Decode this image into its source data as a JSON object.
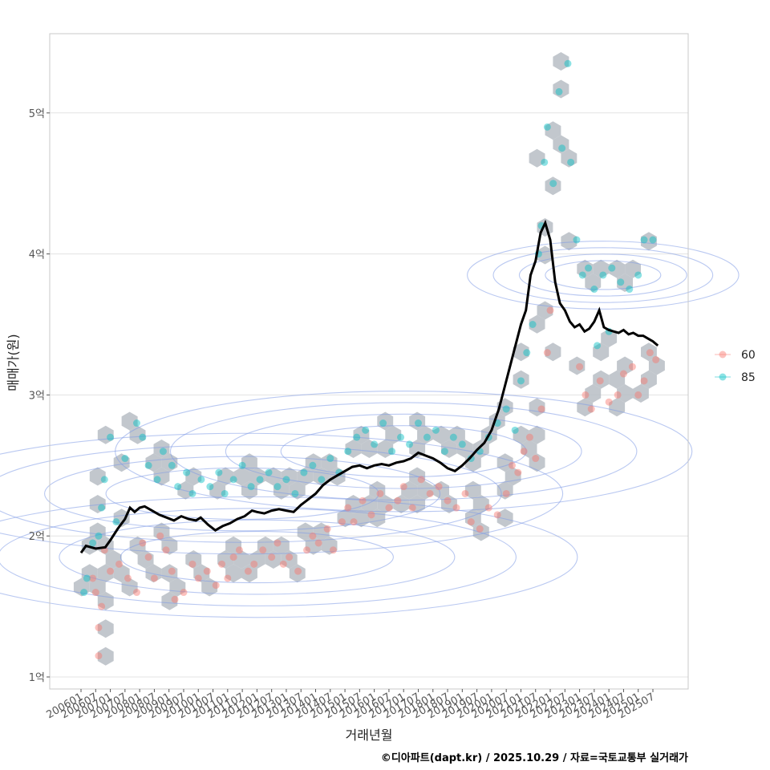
{
  "caption": "©디아파트(dapt.kr) / 2025.10.29 / 자료=국토교통부 실거래가",
  "colors": {
    "series_60": "#F8766D",
    "series_85": "#00BFC4",
    "hex": "#B7BDC4",
    "contour": "#7F9BE6",
    "line": "#000000",
    "grid": "#E3E3E3",
    "frame": "#C8C8C8"
  },
  "chart_data": {
    "type": "scatter",
    "title": "",
    "xlabel": "거래년월",
    "ylabel": "매매가(원)",
    "xlim": [
      2006.0,
      2025.92
    ],
    "ylim": [
      0.9,
      5.55
    ],
    "y_ticks": [
      {
        "value": 1,
        "label": "1억"
      },
      {
        "value": 2,
        "label": "2억"
      },
      {
        "value": 3,
        "label": "3억"
      },
      {
        "value": 4,
        "label": "4억"
      },
      {
        "value": 5,
        "label": "5억"
      }
    ],
    "x_tick_labels": [
      "200601",
      "200607",
      "200701",
      "200707",
      "200801",
      "200807",
      "200901",
      "200907",
      "201001",
      "201007",
      "201101",
      "201107",
      "201201",
      "201207",
      "201301",
      "201307",
      "201401",
      "201407",
      "201501",
      "201507",
      "201601",
      "201607",
      "201701",
      "201707",
      "201801",
      "201807",
      "201901",
      "201907",
      "202001",
      "202007",
      "202101",
      "202107",
      "202201",
      "202207",
      "202301",
      "202307",
      "202401",
      "202407",
      "202501",
      "202507"
    ],
    "legend": {
      "position": "right",
      "entries": [
        "60",
        "85"
      ]
    },
    "series": [
      {
        "name": "60",
        "points": [
          [
            2006.4,
            1.7
          ],
          [
            2006.5,
            1.6
          ],
          [
            2006.6,
            1.35
          ],
          [
            2006.6,
            1.15
          ],
          [
            2006.7,
            1.5
          ],
          [
            2006.8,
            1.9
          ],
          [
            2007.0,
            1.75
          ],
          [
            2007.3,
            1.8
          ],
          [
            2007.6,
            1.7
          ],
          [
            2007.9,
            1.6
          ],
          [
            2008.1,
            1.95
          ],
          [
            2008.3,
            1.85
          ],
          [
            2008.5,
            1.7
          ],
          [
            2008.7,
            2.0
          ],
          [
            2008.9,
            1.9
          ],
          [
            2009.1,
            1.75
          ],
          [
            2009.2,
            1.55
          ],
          [
            2009.5,
            1.6
          ],
          [
            2009.8,
            1.8
          ],
          [
            2010.0,
            1.7
          ],
          [
            2010.3,
            1.75
          ],
          [
            2010.6,
            1.65
          ],
          [
            2010.8,
            1.8
          ],
          [
            2011.0,
            1.7
          ],
          [
            2011.2,
            1.85
          ],
          [
            2011.4,
            1.9
          ],
          [
            2011.7,
            1.75
          ],
          [
            2011.9,
            1.8
          ],
          [
            2012.2,
            1.9
          ],
          [
            2012.5,
            1.85
          ],
          [
            2012.7,
            1.95
          ],
          [
            2012.9,
            1.8
          ],
          [
            2013.1,
            1.85
          ],
          [
            2013.4,
            1.75
          ],
          [
            2013.7,
            1.9
          ],
          [
            2013.9,
            2.0
          ],
          [
            2014.1,
            1.95
          ],
          [
            2014.4,
            2.05
          ],
          [
            2014.6,
            1.9
          ],
          [
            2014.9,
            2.1
          ],
          [
            2015.1,
            2.2
          ],
          [
            2015.3,
            2.1
          ],
          [
            2015.6,
            2.25
          ],
          [
            2015.9,
            2.15
          ],
          [
            2016.2,
            2.3
          ],
          [
            2016.5,
            2.2
          ],
          [
            2016.8,
            2.25
          ],
          [
            2017.0,
            2.35
          ],
          [
            2017.3,
            2.2
          ],
          [
            2017.6,
            2.4
          ],
          [
            2017.9,
            2.3
          ],
          [
            2018.2,
            2.35
          ],
          [
            2018.5,
            2.25
          ],
          [
            2018.8,
            2.2
          ],
          [
            2019.1,
            2.3
          ],
          [
            2019.3,
            2.1
          ],
          [
            2019.6,
            2.05
          ],
          [
            2019.9,
            2.2
          ],
          [
            2020.2,
            2.15
          ],
          [
            2020.5,
            2.3
          ],
          [
            2020.7,
            2.5
          ],
          [
            2020.9,
            2.45
          ],
          [
            2021.1,
            2.6
          ],
          [
            2021.3,
            2.7
          ],
          [
            2021.5,
            2.55
          ],
          [
            2021.7,
            2.9
          ],
          [
            2021.9,
            3.3
          ],
          [
            2022.0,
            3.6
          ],
          [
            2023.0,
            3.2
          ],
          [
            2023.2,
            3.0
          ],
          [
            2023.4,
            2.9
          ],
          [
            2023.7,
            3.1
          ],
          [
            2024.0,
            2.95
          ],
          [
            2024.3,
            3.0
          ],
          [
            2024.5,
            3.15
          ],
          [
            2024.8,
            3.2
          ],
          [
            2025.0,
            3.0
          ],
          [
            2025.2,
            3.1
          ],
          [
            2025.4,
            3.3
          ],
          [
            2025.6,
            3.25
          ]
        ]
      },
      {
        "name": "85",
        "points": [
          [
            2006.1,
            1.6
          ],
          [
            2006.2,
            1.7
          ],
          [
            2006.4,
            1.95
          ],
          [
            2006.6,
            2.0
          ],
          [
            2006.7,
            2.2
          ],
          [
            2006.8,
            2.4
          ],
          [
            2007.0,
            2.7
          ],
          [
            2007.2,
            2.1
          ],
          [
            2007.5,
            2.55
          ],
          [
            2007.9,
            2.8
          ],
          [
            2008.1,
            2.7
          ],
          [
            2008.3,
            2.5
          ],
          [
            2008.6,
            2.4
          ],
          [
            2008.8,
            2.6
          ],
          [
            2009.1,
            2.5
          ],
          [
            2009.3,
            2.35
          ],
          [
            2009.6,
            2.45
          ],
          [
            2009.8,
            2.3
          ],
          [
            2010.1,
            2.4
          ],
          [
            2010.4,
            2.35
          ],
          [
            2010.7,
            2.45
          ],
          [
            2010.9,
            2.3
          ],
          [
            2011.2,
            2.4
          ],
          [
            2011.5,
            2.5
          ],
          [
            2011.8,
            2.35
          ],
          [
            2012.1,
            2.4
          ],
          [
            2012.4,
            2.45
          ],
          [
            2012.7,
            2.35
          ],
          [
            2013.0,
            2.4
          ],
          [
            2013.3,
            2.3
          ],
          [
            2013.6,
            2.45
          ],
          [
            2013.9,
            2.5
          ],
          [
            2014.2,
            2.4
          ],
          [
            2014.5,
            2.55
          ],
          [
            2014.8,
            2.45
          ],
          [
            2015.1,
            2.6
          ],
          [
            2015.4,
            2.7
          ],
          [
            2015.7,
            2.75
          ],
          [
            2016.0,
            2.65
          ],
          [
            2016.3,
            2.8
          ],
          [
            2016.6,
            2.6
          ],
          [
            2016.9,
            2.7
          ],
          [
            2017.2,
            2.65
          ],
          [
            2017.5,
            2.8
          ],
          [
            2017.8,
            2.7
          ],
          [
            2018.1,
            2.75
          ],
          [
            2018.4,
            2.6
          ],
          [
            2018.7,
            2.7
          ],
          [
            2019.0,
            2.65
          ],
          [
            2019.3,
            2.55
          ],
          [
            2019.6,
            2.6
          ],
          [
            2019.9,
            2.7
          ],
          [
            2020.2,
            2.8
          ],
          [
            2020.5,
            2.9
          ],
          [
            2020.8,
            2.75
          ],
          [
            2021.0,
            3.1
          ],
          [
            2021.2,
            3.3
          ],
          [
            2021.4,
            3.5
          ],
          [
            2021.6,
            4.0
          ],
          [
            2021.7,
            4.2
          ],
          [
            2021.8,
            4.65
          ],
          [
            2021.9,
            4.9
          ],
          [
            2022.1,
            4.5
          ],
          [
            2022.3,
            5.15
          ],
          [
            2022.4,
            4.75
          ],
          [
            2022.6,
            5.35
          ],
          [
            2022.7,
            4.65
          ],
          [
            2022.9,
            4.1
          ],
          [
            2023.1,
            3.85
          ],
          [
            2023.3,
            3.9
          ],
          [
            2023.5,
            3.75
          ],
          [
            2023.8,
            3.85
          ],
          [
            2024.1,
            3.9
          ],
          [
            2024.4,
            3.8
          ],
          [
            2024.7,
            3.75
          ],
          [
            2025.0,
            3.85
          ],
          [
            2025.2,
            4.1
          ],
          [
            2025.5,
            4.1
          ],
          [
            2023.6,
            3.35
          ],
          [
            2024.0,
            3.45
          ]
        ]
      }
    ],
    "moving_average": {
      "x": [
        2006.0,
        2006.17,
        2006.5,
        2006.83,
        2007.0,
        2007.25,
        2007.5,
        2007.67,
        2007.83,
        2008.0,
        2008.17,
        2008.42,
        2008.67,
        2008.92,
        2009.17,
        2009.42,
        2009.67,
        2009.92,
        2010.08,
        2010.33,
        2010.58,
        2010.83,
        2011.08,
        2011.33,
        2011.58,
        2011.83,
        2012.0,
        2012.25,
        2012.5,
        2012.75,
        2013.0,
        2013.25,
        2013.5,
        2013.75,
        2014.0,
        2014.25,
        2014.5,
        2014.75,
        2015.0,
        2015.25,
        2015.5,
        2015.75,
        2016.0,
        2016.25,
        2016.5,
        2016.75,
        2017.0,
        2017.25,
        2017.5,
        2017.75,
        2018.0,
        2018.25,
        2018.5,
        2018.75,
        2019.0,
        2019.25,
        2019.5,
        2019.75,
        2020.0,
        2020.25,
        2020.5,
        2020.75,
        2021.0,
        2021.17,
        2021.33,
        2021.5,
        2021.67,
        2021.83,
        2022.0,
        2022.17,
        2022.33,
        2022.5,
        2022.67,
        2022.83,
        2023.0,
        2023.17,
        2023.33,
        2023.5,
        2023.67,
        2023.83,
        2024.0,
        2024.17,
        2024.33,
        2024.5,
        2024.67,
        2024.83,
        2025.0,
        2025.17,
        2025.33,
        2025.5,
        2025.67
      ],
      "y": [
        1.88,
        1.93,
        1.91,
        1.92,
        1.97,
        2.05,
        2.12,
        2.2,
        2.17,
        2.2,
        2.21,
        2.18,
        2.15,
        2.13,
        2.11,
        2.14,
        2.12,
        2.11,
        2.13,
        2.08,
        2.04,
        2.07,
        2.09,
        2.12,
        2.14,
        2.18,
        2.17,
        2.16,
        2.18,
        2.19,
        2.18,
        2.17,
        2.22,
        2.26,
        2.3,
        2.36,
        2.4,
        2.43,
        2.46,
        2.49,
        2.5,
        2.48,
        2.5,
        2.51,
        2.5,
        2.52,
        2.53,
        2.55,
        2.59,
        2.57,
        2.55,
        2.52,
        2.48,
        2.46,
        2.5,
        2.55,
        2.61,
        2.66,
        2.75,
        2.9,
        3.1,
        3.3,
        3.5,
        3.6,
        3.85,
        3.95,
        4.15,
        4.22,
        4.1,
        3.8,
        3.65,
        3.6,
        3.52,
        3.48,
        3.5,
        3.45,
        3.47,
        3.52,
        3.6,
        3.48,
        3.46,
        3.45,
        3.44,
        3.46,
        3.43,
        3.44,
        3.42,
        3.42,
        3.4,
        3.38,
        3.35
      ]
    }
  }
}
